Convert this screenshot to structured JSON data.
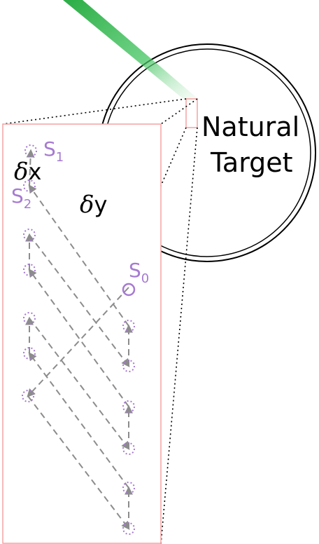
{
  "target_label_line1": "Natural",
  "target_label_line2": "Target",
  "dx_symbol": "δ",
  "dx_var": "x",
  "dy_symbol": "δ",
  "dy_var": "y",
  "s1": "S",
  "s1_sub": "1",
  "s2": "S",
  "s2_sub": "2",
  "s0": "S",
  "s0_sub": "0",
  "colors": {
    "beam": "#2db84a",
    "box_outline": "#f4a3a3",
    "scan_path": "#8c8c8c",
    "points": "#a67bd1",
    "circle": "#000000"
  }
}
